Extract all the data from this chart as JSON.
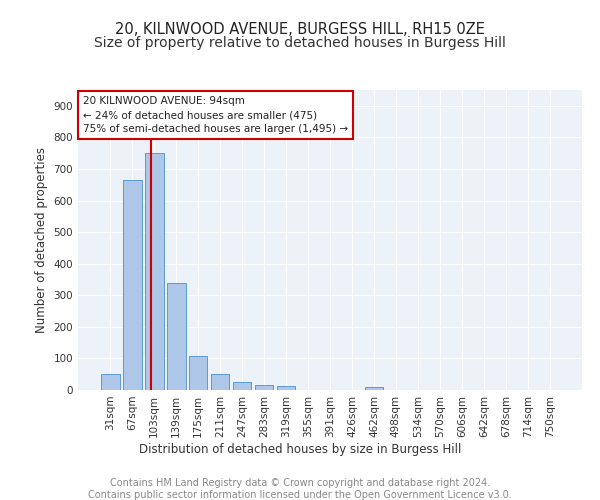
{
  "title": "20, KILNWOOD AVENUE, BURGESS HILL, RH15 0ZE",
  "subtitle": "Size of property relative to detached houses in Burgess Hill",
  "xlabel": "Distribution of detached houses by size in Burgess Hill",
  "ylabel": "Number of detached properties",
  "footer_line1": "Contains HM Land Registry data © Crown copyright and database right 2024.",
  "footer_line2": "Contains public sector information licensed under the Open Government Licence v3.0.",
  "bar_labels": [
    "31sqm",
    "67sqm",
    "103sqm",
    "139sqm",
    "175sqm",
    "211sqm",
    "247sqm",
    "283sqm",
    "319sqm",
    "355sqm",
    "391sqm",
    "426sqm",
    "462sqm",
    "498sqm",
    "534sqm",
    "570sqm",
    "606sqm",
    "642sqm",
    "678sqm",
    "714sqm",
    "750sqm"
  ],
  "bar_values": [
    50,
    665,
    750,
    340,
    108,
    50,
    25,
    17,
    12,
    0,
    0,
    0,
    8,
    0,
    0,
    0,
    0,
    0,
    0,
    0,
    0
  ],
  "bar_color": "#aec6e8",
  "bar_edge_color": "#5b9bd5",
  "vline_color": "#cc0000",
  "vline_pos": 1.85,
  "annotation_text_line1": "20 KILNWOOD AVENUE: 94sqm",
  "annotation_text_line2": "← 24% of detached houses are smaller (475)",
  "annotation_text_line3": "75% of semi-detached houses are larger (1,495) →",
  "annotation_box_color": "#ffffff",
  "annotation_box_edge": "#cc0000",
  "ylim": [
    0,
    950
  ],
  "yticks": [
    0,
    100,
    200,
    300,
    400,
    500,
    600,
    700,
    800,
    900
  ],
  "background_color": "#edf1f8",
  "grid_color": "#ffffff",
  "title_fontsize": 10.5,
  "axis_label_fontsize": 8.5,
  "tick_fontsize": 7.5,
  "footer_fontsize": 7.0
}
